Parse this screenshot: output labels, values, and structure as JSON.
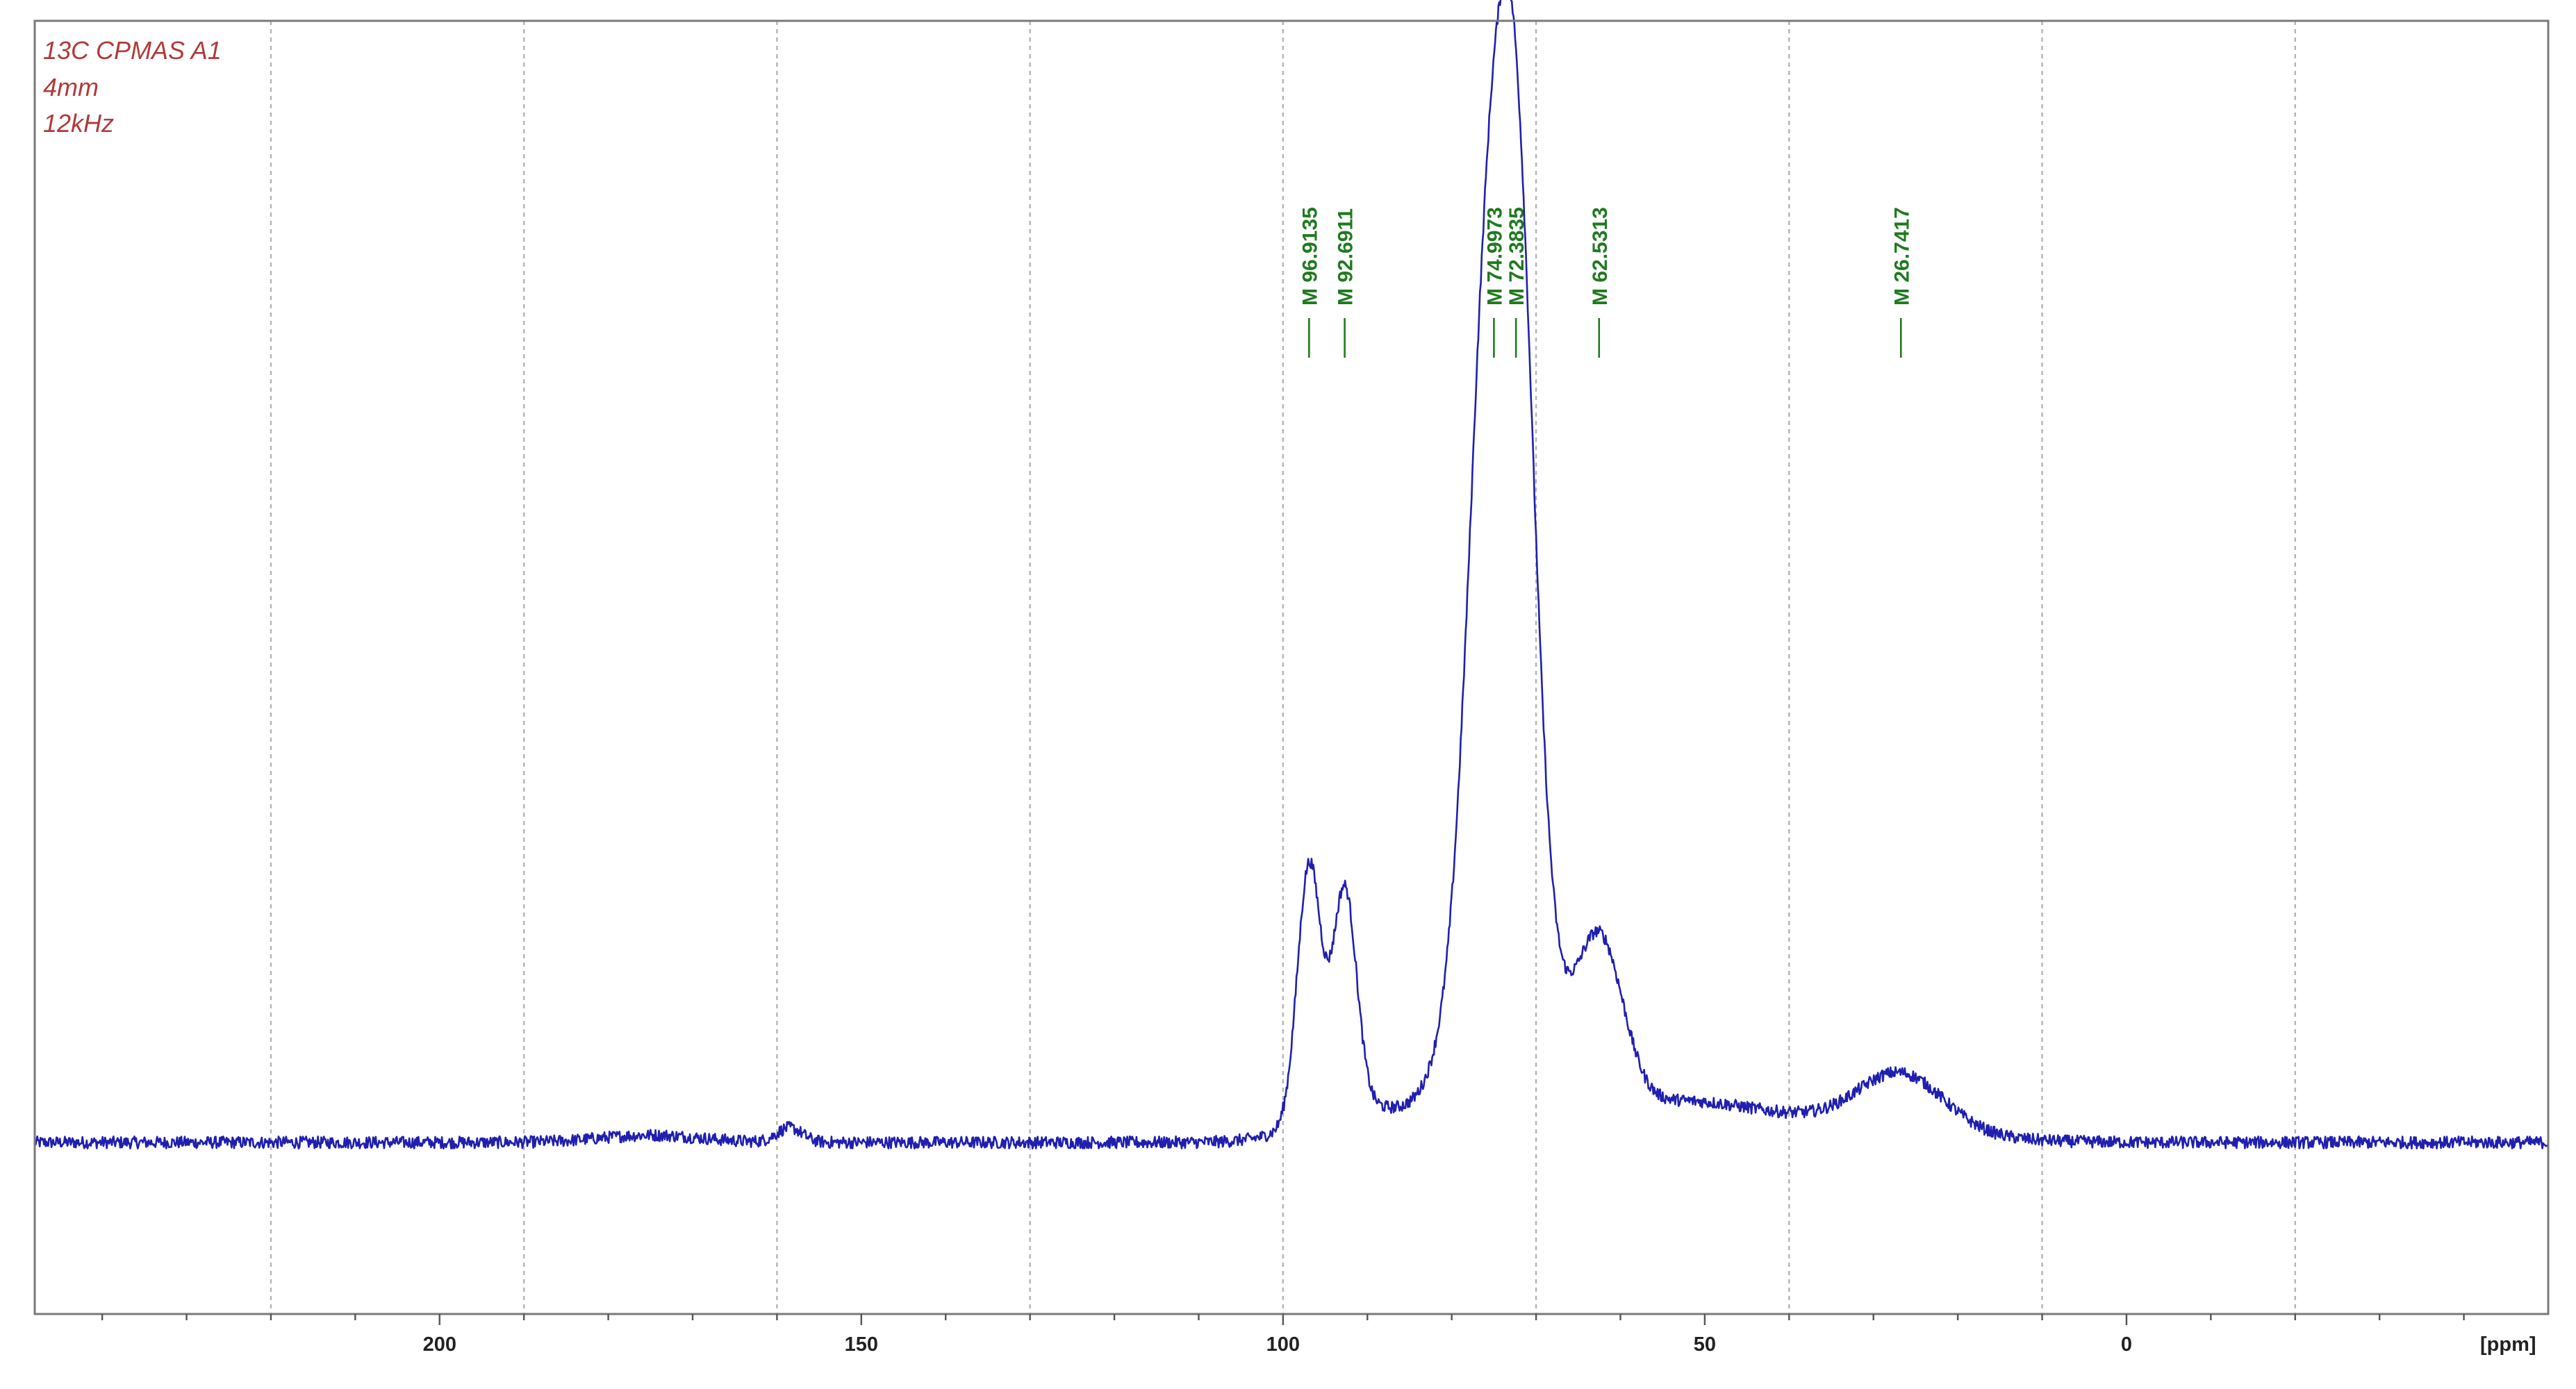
{
  "experiment_info": {
    "line1": "13C CPMAS  A1",
    "line2": "4mm",
    "line3": "12kHz"
  },
  "chart_data": {
    "type": "line",
    "title": "",
    "xlabel": "[ppm]",
    "ylabel": "",
    "x_reversed": true,
    "xlim": [
      248,
      -50
    ],
    "ylim": [
      -15,
      100
    ],
    "x_ticks": [
      {
        "value": 200,
        "label": "200"
      },
      {
        "value": 150,
        "label": "150"
      },
      {
        "value": 100,
        "label": "100"
      },
      {
        "value": 50,
        "label": "50"
      },
      {
        "value": 0,
        "label": "0"
      }
    ],
    "minor_ticks": [
      240,
      230,
      220,
      210,
      190,
      180,
      170,
      160,
      140,
      130,
      120,
      110,
      90,
      80,
      70,
      60,
      40,
      30,
      20,
      10,
      -10,
      -20,
      -30,
      -40
    ],
    "vertical_grid_ppm": [
      220,
      190,
      160,
      130,
      100,
      70,
      40,
      10,
      -20
    ],
    "peak_picks": [
      {
        "label": "M 96.9135",
        "ppm": 96.9135
      },
      {
        "label": "M 92.6911",
        "ppm": 92.6911
      },
      {
        "label": "M 74.9973",
        "ppm": 74.9973
      },
      {
        "label": "M 72.3835",
        "ppm": 72.3835
      },
      {
        "label": "M 62.5313",
        "ppm": 62.5313
      },
      {
        "label": "M 26.7417",
        "ppm": 26.7417
      }
    ],
    "series": [
      {
        "baseline": 0,
        "noise_amplitude": 0.5,
        "shape": [
          {
            "center": 158.5,
            "width": 1.5,
            "height": 1.2
          },
          {
            "center": 175,
            "width": 6,
            "height": 0.6
          },
          {
            "center": 96.9,
            "width": 1.4,
            "height": 21
          },
          {
            "center": 92.7,
            "width": 1.4,
            "height": 18
          },
          {
            "center": 91,
            "width": 6,
            "height": 3
          },
          {
            "center": 76,
            "width": 2.2,
            "height": 39
          },
          {
            "center": 72.4,
            "width": 2.2,
            "height": 54
          },
          {
            "center": 74.2,
            "width": 4.5,
            "height": 27
          },
          {
            "center": 62.5,
            "width": 2.8,
            "height": 14
          },
          {
            "center": 55,
            "width": 10,
            "height": 3
          },
          {
            "center": 26.7,
            "width": 5,
            "height": 4.5
          },
          {
            "center": 35,
            "width": 12,
            "height": 1.5
          }
        ]
      }
    ]
  }
}
